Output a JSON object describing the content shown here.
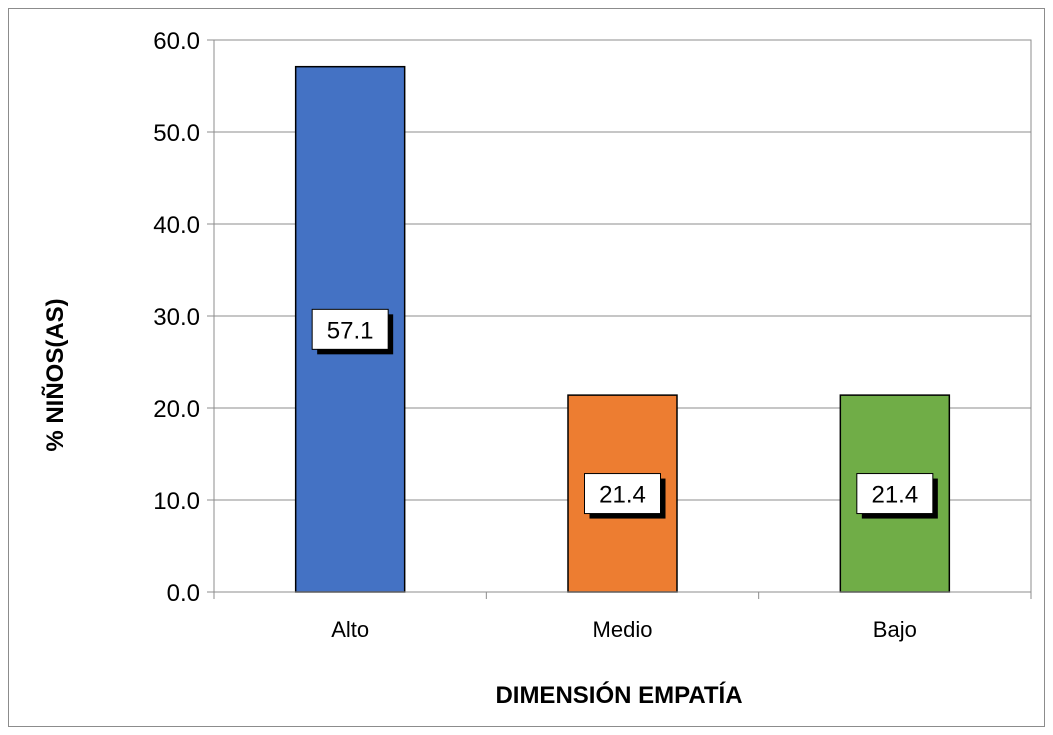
{
  "chart_data": {
    "type": "bar",
    "title": "",
    "xlabel": "DIMENSIÓN EMPATÍA",
    "ylabel": "% NIÑOS(AS)",
    "categories": [
      "Alto",
      "Medio",
      "Bajo"
    ],
    "values": [
      57.1,
      21.4,
      21.4
    ],
    "data_labels": [
      "57.1",
      "21.4",
      "21.4"
    ],
    "colors": [
      "#4472C4",
      "#ED7D31",
      "#70AD47"
    ],
    "ylim": [
      0,
      60
    ],
    "yticks": [
      0,
      10,
      20,
      30,
      40,
      50,
      60
    ],
    "ytick_labels": [
      "0.0",
      "10.0",
      "20.0",
      "30.0",
      "40.0",
      "50.0",
      "60.0"
    ],
    "grid": true,
    "legend": "none"
  }
}
